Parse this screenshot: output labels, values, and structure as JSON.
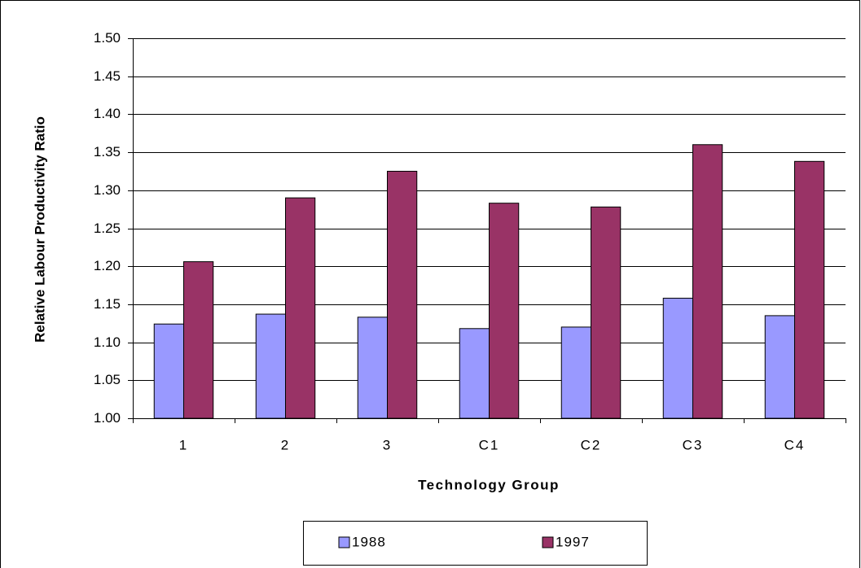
{
  "chart_data": {
    "type": "bar",
    "y_label": "Relative Labour Productivity Ratio",
    "x_label": "Technology Group",
    "categories": [
      "1",
      "2",
      "3",
      "C1",
      "C2",
      "C3",
      "C4"
    ],
    "series": [
      {
        "name": "1988",
        "color": "#9999ff",
        "values": [
          1.124,
          1.137,
          1.133,
          1.118,
          1.12,
          1.158,
          1.135
        ]
      },
      {
        "name": "1997",
        "color": "#993366",
        "values": [
          1.206,
          1.29,
          1.325,
          1.283,
          1.278,
          1.36,
          1.338
        ]
      }
    ],
    "ylim": [
      1.0,
      1.5
    ],
    "yticks": [
      {
        "value": 1.0,
        "label": "1.00"
      },
      {
        "value": 1.05,
        "label": "1.05"
      },
      {
        "value": 1.1,
        "label": "1.10"
      },
      {
        "value": 1.15,
        "label": "1.15"
      },
      {
        "value": 1.2,
        "label": "1.20"
      },
      {
        "value": 1.25,
        "label": "1.25"
      },
      {
        "value": 1.3,
        "label": "1.30"
      },
      {
        "value": 1.35,
        "label": "1.35"
      },
      {
        "value": 1.4,
        "label": "1.40"
      },
      {
        "value": 1.45,
        "label": "1.45"
      },
      {
        "value": 1.5,
        "label": "1.50"
      }
    ],
    "grid": true
  }
}
